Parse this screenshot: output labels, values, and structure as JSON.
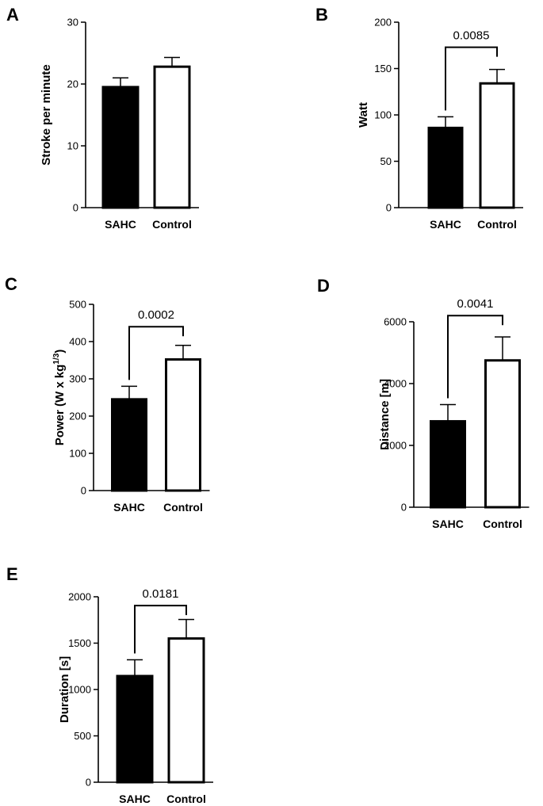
{
  "chart_data": [
    {
      "type": "bar",
      "panel": "A",
      "categories": [
        "SAHC",
        "Control"
      ],
      "values": [
        19.5,
        22.8
      ],
      "errors": [
        1.5,
        1.5
      ],
      "bar_fill": [
        "#000000",
        "#ffffff"
      ],
      "ylabel": "Stroke per minute",
      "ylim": [
        0,
        30
      ],
      "yticks": [
        0,
        10,
        20,
        30
      ],
      "significance": null
    },
    {
      "type": "bar",
      "panel": "B",
      "categories": [
        "SAHC",
        "Control"
      ],
      "values": [
        86,
        134
      ],
      "errors": [
        12,
        15
      ],
      "bar_fill": [
        "#000000",
        "#ffffff"
      ],
      "ylabel": "Watt",
      "ylim": [
        0,
        200
      ],
      "yticks": [
        0,
        50,
        100,
        150,
        200
      ],
      "significance": {
        "label": "0.0085",
        "bracket_y": 173
      }
    },
    {
      "type": "bar",
      "panel": "C",
      "categories": [
        "SAHC",
        "Control"
      ],
      "values": [
        245,
        352
      ],
      "errors": [
        35,
        38
      ],
      "bar_fill": [
        "#000000",
        "#ffffff"
      ],
      "ylabel": "Power (W x kg",
      "ylabel_sup": "1/3",
      "ylabel_end": ")",
      "ylim": [
        0,
        500
      ],
      "yticks": [
        0,
        100,
        200,
        300,
        400,
        500
      ],
      "significance": {
        "label": "0.0002",
        "bracket_y": 440
      }
    },
    {
      "type": "bar",
      "panel": "D",
      "categories": [
        "SAHC",
        "Control"
      ],
      "values": [
        2780,
        4750
      ],
      "errors": [
        540,
        760
      ],
      "bar_fill": [
        "#000000",
        "#ffffff"
      ],
      "ylabel": "Distance [m]",
      "ylim": [
        0,
        6000
      ],
      "yticks": [
        0,
        2000,
        4000,
        6000
      ],
      "significance": {
        "label": "0.0041",
        "bracket_y": 6200
      }
    },
    {
      "type": "bar",
      "panel": "E",
      "categories": [
        "SAHC",
        "Control"
      ],
      "values": [
        1145,
        1550
      ],
      "errors": [
        175,
        205
      ],
      "bar_fill": [
        "#000000",
        "#ffffff"
      ],
      "ylabel": "Duration [s]",
      "ylim": [
        0,
        2000
      ],
      "yticks": [
        0,
        500,
        1000,
        1500,
        2000
      ],
      "significance": {
        "label": "0.0181",
        "bracket_y": 1905
      }
    }
  ]
}
